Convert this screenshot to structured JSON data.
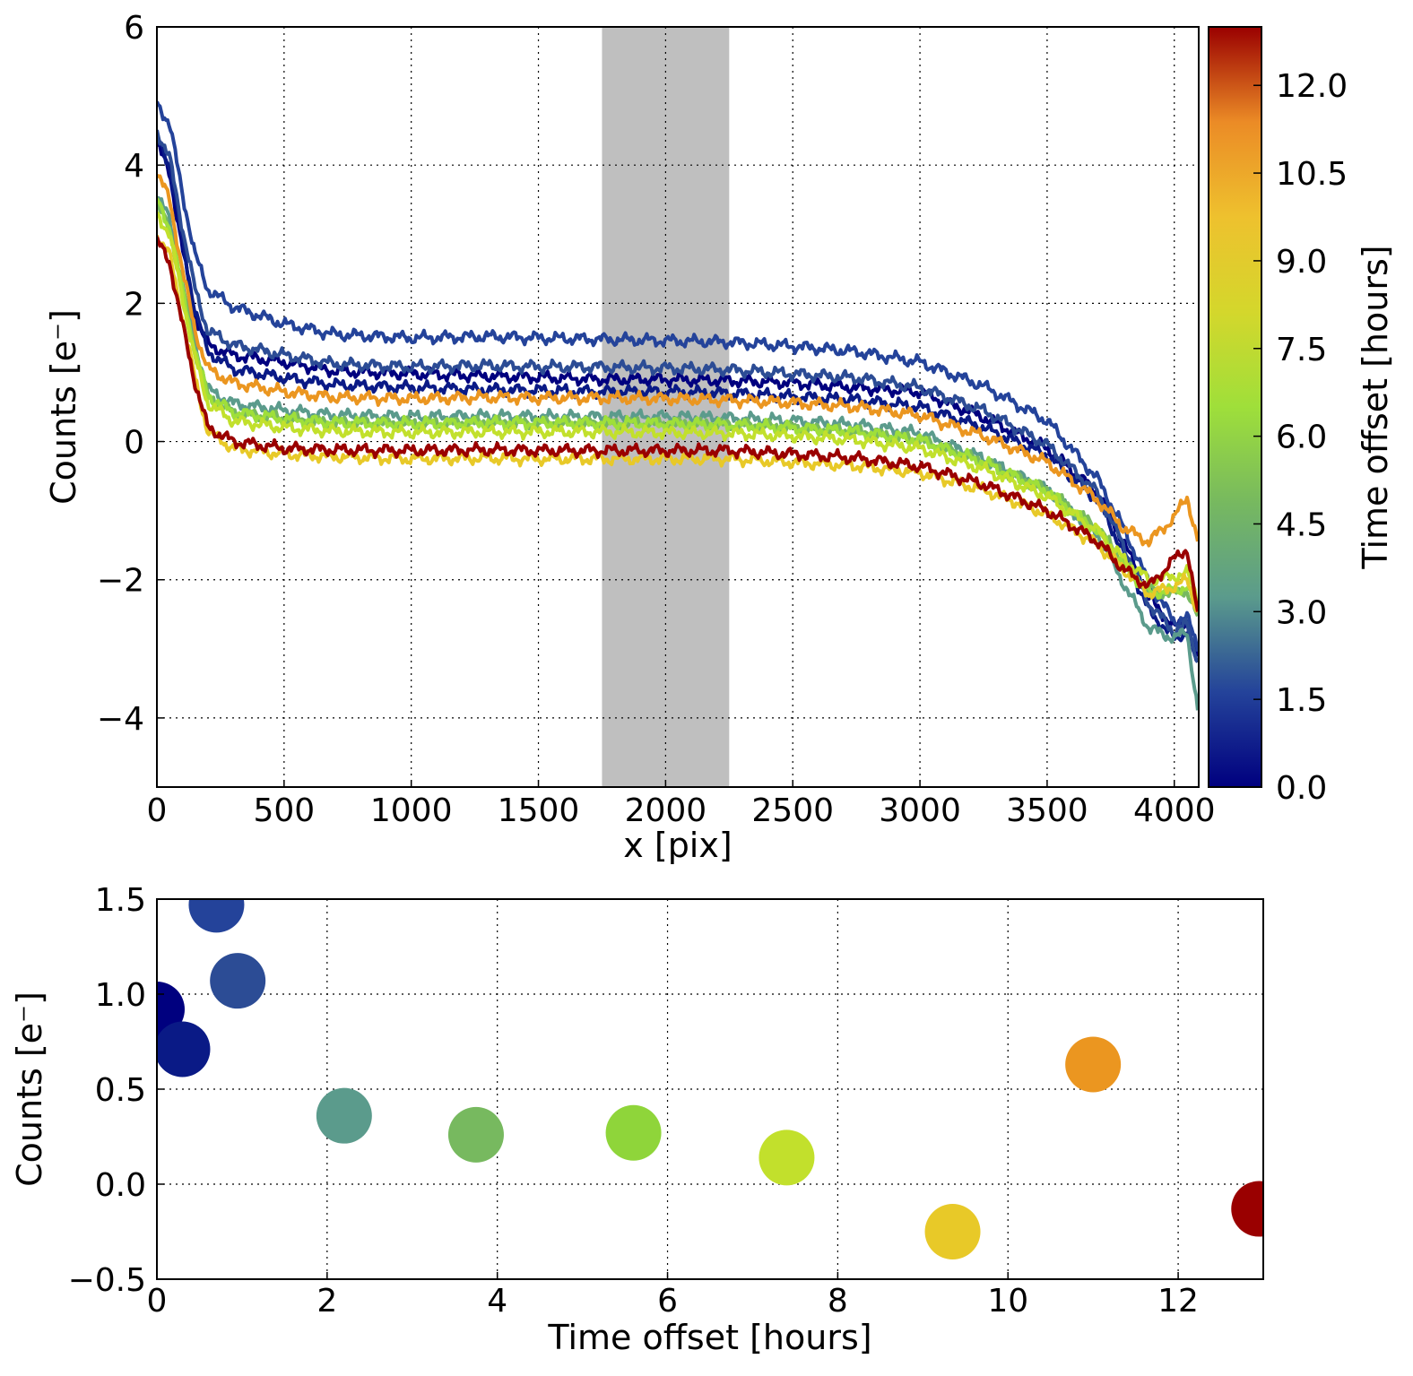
{
  "chart_data": [
    {
      "type": "line",
      "xlabel": "x [pix]",
      "ylabel": "Counts [e⁻]",
      "xlim": [
        0,
        4096
      ],
      "ylim": [
        -5,
        6
      ],
      "xticks": [
        0,
        500,
        1000,
        1500,
        2000,
        2500,
        3000,
        3500,
        4000
      ],
      "yticks": [
        -4,
        -2,
        0,
        2,
        4,
        6
      ],
      "xtick_labels": [
        "0",
        "500",
        "1000",
        "1500",
        "2000",
        "2500",
        "3000",
        "3500",
        "4000"
      ],
      "ytick_labels": [
        "−4",
        "−2",
        "0",
        "2",
        "4",
        "6"
      ],
      "grid": true,
      "shaded_region": {
        "x": [
          1750,
          2250
        ],
        "color": "#bfbfbf"
      },
      "colorbar": {
        "label": "Time offset [hours]",
        "range": [
          0,
          13
        ],
        "ticks": [
          0.0,
          1.5,
          3.0,
          4.5,
          6.0,
          7.5,
          9.0,
          10.5,
          12.0
        ],
        "tick_labels": [
          "0.0",
          "1.5",
          "3.0",
          "4.5",
          "6.0",
          "7.5",
          "9.0",
          "10.5",
          "12.0"
        ],
        "colors": [
          "#00007f",
          "#24439a",
          "#5b9b8c",
          "#77b95f",
          "#9fdf3a",
          "#d4d72c",
          "#eec12e",
          "#eb8b26",
          "#9a0000"
        ]
      },
      "x": [
        0,
        50,
        100,
        150,
        200,
        300,
        500,
        700,
        1000,
        1300,
        1500,
        1750,
        2000,
        2250,
        2500,
        2750,
        3000,
        3250,
        3500,
        3700,
        3800,
        3900,
        4000,
        4050,
        4096
      ],
      "series": [
        {
          "time_offset": 0.0,
          "color": "#00007f",
          "values": [
            4.3,
            3.9,
            2.8,
            1.8,
            1.4,
            1.25,
            1.15,
            1.02,
            0.98,
            0.95,
            0.93,
            0.9,
            0.9,
            0.88,
            0.85,
            0.78,
            0.72,
            0.35,
            -0.1,
            -0.75,
            -1.45,
            -2.25,
            -2.7,
            -2.6,
            -3.2
          ]
        },
        {
          "time_offset": 0.3,
          "color": "#0a1a86",
          "values": [
            4.4,
            4.0,
            2.9,
            1.9,
            1.3,
            1.05,
            0.92,
            0.82,
            0.78,
            0.75,
            0.74,
            0.72,
            0.72,
            0.7,
            0.65,
            0.6,
            0.5,
            0.2,
            -0.2,
            -0.85,
            -1.6,
            -2.45,
            -2.85,
            -2.75,
            -3.3
          ]
        },
        {
          "time_offset": 0.7,
          "color": "#24439a",
          "values": [
            4.9,
            4.6,
            3.6,
            2.7,
            2.2,
            1.95,
            1.7,
            1.55,
            1.5,
            1.52,
            1.5,
            1.48,
            1.46,
            1.44,
            1.38,
            1.3,
            1.15,
            0.8,
            0.3,
            -0.55,
            -1.25,
            -2.05,
            -2.6,
            -2.55,
            -3.0
          ]
        },
        {
          "time_offset": 0.95,
          "color": "#2c4c95",
          "values": [
            4.5,
            4.1,
            3.1,
            2.2,
            1.6,
            1.4,
            1.25,
            1.12,
            1.08,
            1.1,
            1.08,
            1.08,
            1.06,
            1.04,
            0.98,
            0.92,
            0.78,
            0.45,
            -0.05,
            -0.75,
            -1.5,
            -2.35,
            -2.75,
            -2.65,
            -3.2
          ]
        },
        {
          "time_offset": 2.2,
          "color": "#5b9b8c",
          "values": [
            3.6,
            3.2,
            2.3,
            1.4,
            0.75,
            0.55,
            0.45,
            0.38,
            0.36,
            0.37,
            0.36,
            0.36,
            0.36,
            0.34,
            0.3,
            0.24,
            0.12,
            -0.25,
            -0.7,
            -1.35,
            -2.05,
            -2.7,
            -2.85,
            -2.75,
            -4.0
          ]
        },
        {
          "time_offset": 3.75,
          "color": "#77b95f",
          "values": [
            3.4,
            3.1,
            2.2,
            1.3,
            0.65,
            0.42,
            0.33,
            0.27,
            0.26,
            0.27,
            0.26,
            0.26,
            0.26,
            0.24,
            0.2,
            0.14,
            0.02,
            -0.3,
            -0.7,
            -1.25,
            -1.75,
            -2.15,
            -2.2,
            -2.15,
            -2.6
          ]
        },
        {
          "time_offset": 5.6,
          "color": "#9fdf3a",
          "values": [
            3.5,
            3.1,
            2.2,
            1.3,
            0.66,
            0.42,
            0.33,
            0.27,
            0.26,
            0.27,
            0.27,
            0.27,
            0.26,
            0.24,
            0.2,
            0.14,
            0.02,
            -0.3,
            -0.72,
            -1.3,
            -1.8,
            -2.2,
            -2.15,
            -2.1,
            -2.5
          ]
        },
        {
          "time_offset": 7.4,
          "color": "#c2e02c",
          "values": [
            3.3,
            3.0,
            2.1,
            1.2,
            0.55,
            0.3,
            0.2,
            0.15,
            0.13,
            0.14,
            0.14,
            0.14,
            0.13,
            0.12,
            0.08,
            0.02,
            -0.1,
            -0.4,
            -0.8,
            -1.3,
            -1.7,
            -2.0,
            -1.95,
            -1.9,
            -2.3
          ]
        },
        {
          "time_offset": 9.35,
          "color": "#e8c928",
          "values": [
            3.0,
            2.7,
            1.8,
            0.9,
            0.15,
            -0.1,
            -0.18,
            -0.22,
            -0.25,
            -0.24,
            -0.25,
            -0.25,
            -0.25,
            -0.25,
            -0.3,
            -0.35,
            -0.45,
            -0.7,
            -1.05,
            -1.5,
            -1.85,
            -2.2,
            -2.1,
            -2.0,
            -2.5
          ]
        },
        {
          "time_offset": 11.0,
          "color": "#eb9620",
          "values": [
            3.9,
            3.5,
            2.5,
            1.6,
            1.05,
            0.85,
            0.72,
            0.64,
            0.62,
            0.64,
            0.63,
            0.63,
            0.62,
            0.6,
            0.56,
            0.5,
            0.38,
            0.08,
            -0.3,
            -0.85,
            -1.25,
            -1.45,
            -1.1,
            -0.8,
            -1.5
          ]
        },
        {
          "time_offset": 12.95,
          "color": "#9a0000",
          "values": [
            2.9,
            2.6,
            1.7,
            0.85,
            0.2,
            0.0,
            -0.1,
            -0.12,
            -0.13,
            -0.12,
            -0.13,
            -0.13,
            -0.13,
            -0.13,
            -0.18,
            -0.24,
            -0.36,
            -0.62,
            -1.0,
            -1.45,
            -1.85,
            -2.1,
            -1.7,
            -1.55,
            -2.6
          ]
        }
      ]
    },
    {
      "type": "scatter",
      "xlabel": "Time offset [hours]",
      "ylabel": "Counts [e⁻]",
      "xlim": [
        0,
        13
      ],
      "ylim": [
        -0.5,
        1.5
      ],
      "xticks": [
        0,
        2,
        4,
        6,
        8,
        10,
        12
      ],
      "yticks": [
        -0.5,
        0.0,
        0.5,
        1.0,
        1.5
      ],
      "xtick_labels": [
        "0",
        "2",
        "4",
        "6",
        "8",
        "10",
        "12"
      ],
      "ytick_labels": [
        "−0.5",
        "0.0",
        "0.5",
        "1.0",
        "1.5"
      ],
      "grid": true,
      "points": [
        {
          "x": 0.0,
          "y": 0.92,
          "color": "#00007f"
        },
        {
          "x": 0.3,
          "y": 0.71,
          "color": "#0a1a86"
        },
        {
          "x": 0.7,
          "y": 1.47,
          "color": "#24439a"
        },
        {
          "x": 0.95,
          "y": 1.07,
          "color": "#2c4c95"
        },
        {
          "x": 2.2,
          "y": 0.36,
          "color": "#5b9b8c"
        },
        {
          "x": 3.75,
          "y": 0.26,
          "color": "#77b95f"
        },
        {
          "x": 5.6,
          "y": 0.27,
          "color": "#8fd53a"
        },
        {
          "x": 7.4,
          "y": 0.14,
          "color": "#c2e02c"
        },
        {
          "x": 9.35,
          "y": -0.25,
          "color": "#e8c928"
        },
        {
          "x": 11.0,
          "y": 0.63,
          "color": "#eb9620"
        },
        {
          "x": 12.95,
          "y": -0.13,
          "color": "#9a0000"
        }
      ]
    }
  ]
}
